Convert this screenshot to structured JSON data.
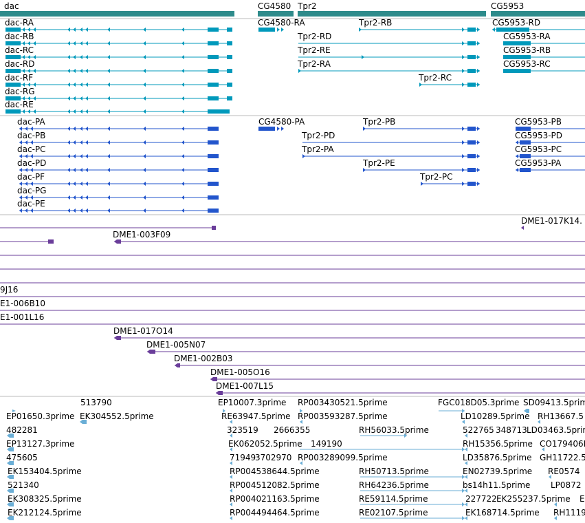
{
  "colors": {
    "gene": "#2e8b8b",
    "transcript": "#0099bb",
    "protein": "#2255cc",
    "clone": "#6a3d9a",
    "est": "#6aaed6",
    "separator": "#bbbbbb"
  },
  "genes": [
    "dac",
    "CG4580",
    "Tpr2",
    "CG5953"
  ],
  "transcripts": [
    "dac-RA",
    "dac-RB",
    "dac-RC",
    "dac-RD",
    "dac-RF",
    "dac-RG",
    "dac-RE",
    "CG4580-RA",
    "Tpr2-RD",
    "Tpr2-RB",
    "Tpr2-RE",
    "Tpr2-RA",
    "Tpr2-RC",
    "CG5953-RD",
    "CG5953-RA",
    "CG5953-RB",
    "CG5953-RC"
  ],
  "proteins": [
    "dac-PA",
    "dac-PB",
    "dac-PC",
    "dac-PD",
    "dac-PF",
    "dac-PG",
    "dac-PE",
    "CG4580-PA",
    "Tpr2-PB",
    "Tpr2-PD",
    "Tpr2-PA",
    "Tpr2-PE",
    "Tpr2-PC",
    "CG5953-PB",
    "CG5953-PD",
    "CG5953-PC",
    "CG5953-PA"
  ],
  "clones": [
    "DME1-017K14.",
    "DME1-003F09",
    "9J16",
    "E1-006B10",
    "E1-001L16",
    "DME1-017O14",
    "DME1-005N07",
    "DME1-002B03",
    "DME1-005O16",
    "DME1-007L15"
  ],
  "ests": [
    "513790",
    "EP01650.3prime",
    "EK304552.5prime",
    "482281",
    "EP13127.3prime",
    "475605",
    "EK153404.5prime",
    "521340",
    "EK308325.5prime",
    "EK212124.5prime",
    "EP10007.3prime",
    "RE63947.5prime",
    "323519",
    "2666355",
    "EK062052.5prime",
    "149190",
    "71949",
    "3702970",
    "RP003289099.5prime",
    "RP004538644.5prime",
    "RP004512082.5prime",
    "RP004021163.5prime",
    "RP004494464.5prime",
    "RP003430521.5prime",
    "RP003593287.5prime",
    "RH56033.5prime",
    "RH50713.5prime",
    "RH64236.5prime",
    "RE59114.5prime",
    "RE02107.5prime",
    "FGC018D05.3prime",
    "LD10289.5prime",
    "522765",
    "348713",
    "RH15356.5prime",
    "LD35876.5prime",
    "EN02739.5prime",
    "bs14h11.5prime",
    "227722",
    "EK255237.5prime",
    "EK168714.5prime",
    "SD09413.5prime",
    "RH13667.5",
    "LD03463.5prim",
    "CO179406I",
    "GH11722.5",
    "RE0574",
    "LP0872",
    "RH1119",
    "E"
  ]
}
